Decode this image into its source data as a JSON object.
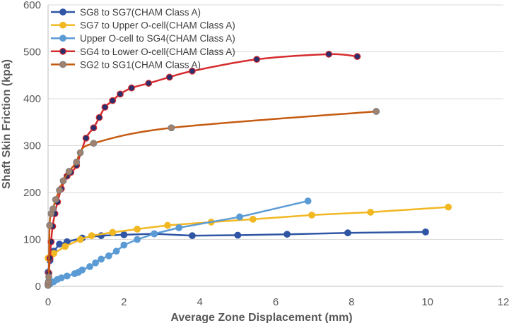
{
  "chart_data": {
    "type": "scatter",
    "title": "",
    "xlabel": "Average Zone Displacement (mm)",
    "ylabel": "Shaft Skin Friction (kpa)",
    "xlim": [
      0,
      12
    ],
    "ylim": [
      0,
      600
    ],
    "xticks": [
      0,
      2,
      4,
      6,
      8,
      10,
      12
    ],
    "yticks": [
      0,
      100,
      200,
      300,
      400,
      500,
      600
    ],
    "grid": "horizontal",
    "legend_position": "top-left",
    "series": [
      {
        "name": "SG8 to SG7(CHAM Class A)",
        "color": "#2F55A4",
        "smooth": false,
        "x": [
          0,
          0.05,
          0.15,
          0.3,
          0.5,
          0.9,
          1.4,
          2.0,
          2.8,
          3.8,
          5.0,
          6.3,
          7.9,
          9.95
        ],
        "y": [
          30,
          55,
          75,
          90,
          95,
          103,
          108,
          110,
          112,
          108,
          109,
          111,
          114,
          116
        ]
      },
      {
        "name": "SG7 to Upper O-cell(CHAM Class A)",
        "color": "#F2B822",
        "smooth": false,
        "x": [
          0,
          0.15,
          0.45,
          0.85,
          1.15,
          1.7,
          2.35,
          3.15,
          4.3,
          5.4,
          6.95,
          8.5,
          10.55
        ],
        "y": [
          60,
          70,
          85,
          100,
          108,
          115,
          122,
          130,
          137,
          143,
          152,
          158,
          169
        ]
      },
      {
        "name": "Upper O-cell to SG4(CHAM Class A)",
        "color": "#5B9BD5",
        "smooth": false,
        "x": [
          0,
          0.05,
          0.15,
          0.25,
          0.35,
          0.5,
          0.7,
          0.8,
          0.9,
          1.1,
          1.25,
          1.4,
          1.6,
          1.8,
          2.0,
          2.35,
          2.8,
          3.45,
          5.05,
          6.85
        ],
        "y": [
          2,
          5,
          10,
          15,
          18,
          22,
          27,
          30,
          35,
          42,
          50,
          58,
          65,
          75,
          88,
          100,
          112,
          125,
          148,
          182
        ]
      },
      {
        "name": "SG4 to Lower O-cell(CHAM Class A)",
        "color": "#D62C2F",
        "smooth": true,
        "x": [
          0,
          0.02,
          0.05,
          0.08,
          0.12,
          0.18,
          0.25,
          0.35,
          0.5,
          0.6,
          0.75,
          1.0,
          1.2,
          1.35,
          1.5,
          1.7,
          1.9,
          2.2,
          2.65,
          3.2,
          3.8,
          5.5,
          7.4,
          8.15
        ],
        "y": [
          5,
          28,
          60,
          95,
          128,
          155,
          180,
          208,
          235,
          243,
          258,
          316,
          338,
          360,
          382,
          396,
          410,
          423,
          433,
          446,
          459,
          484,
          495,
          490
        ]
      },
      {
        "name": "SG2 to SG1(CHAM Class A)",
        "color": "#C55A11",
        "smooth": true,
        "x": [
          0,
          0.01,
          0.02,
          0.04,
          0.08,
          0.13,
          0.2,
          0.3,
          0.4,
          0.55,
          0.75,
          0.85,
          1.2,
          3.25,
          8.65
        ],
        "y": [
          2,
          10,
          20,
          130,
          155,
          165,
          185,
          205,
          225,
          245,
          265,
          285,
          305,
          338,
          373
        ]
      }
    ]
  }
}
